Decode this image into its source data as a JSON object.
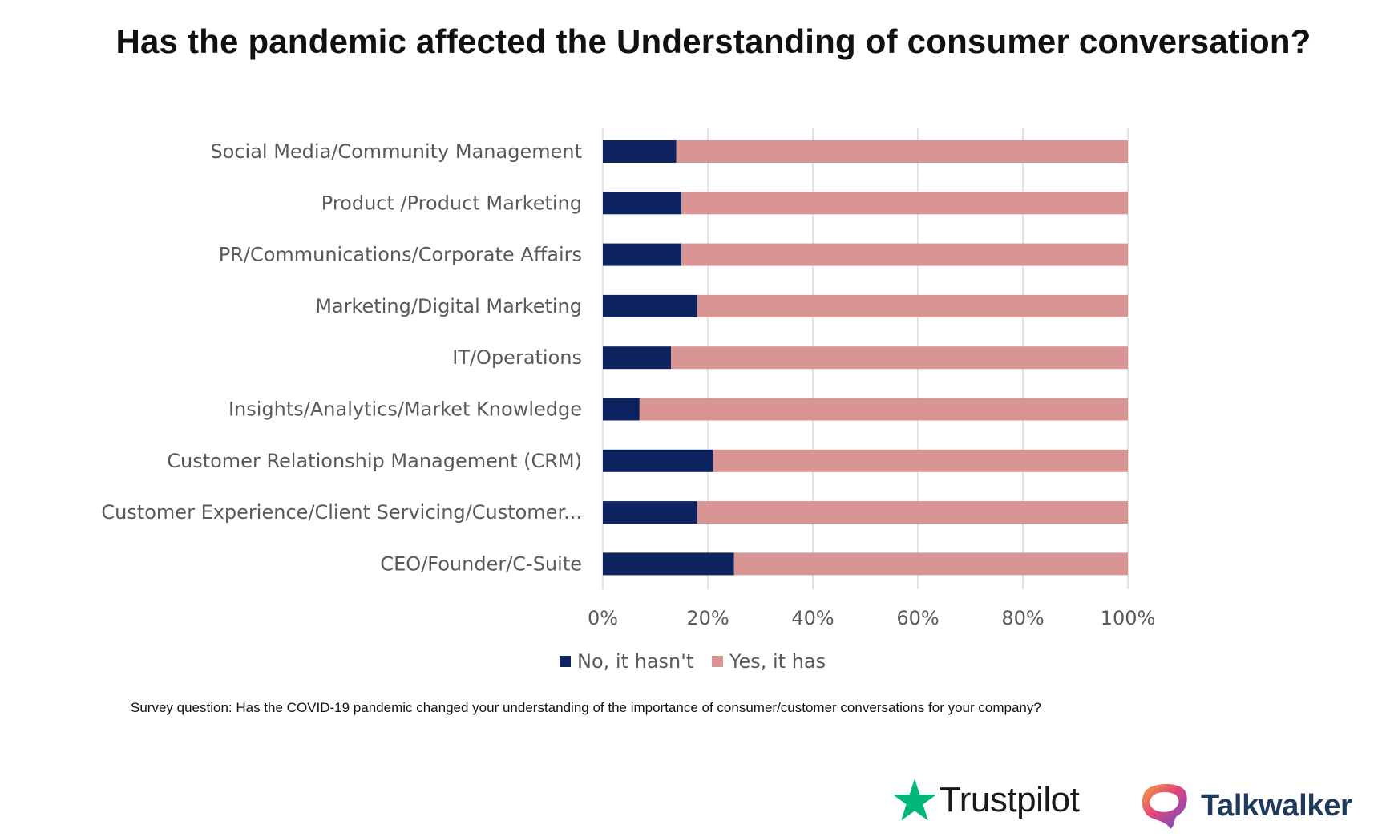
{
  "title": "Has the pandemic affected the Understanding of consumer conversation?",
  "footnote": "Survey question: Has the COVID-19 pandemic changed your understanding of the importance of consumer/customer conversations for your company?",
  "logos": {
    "trustpilot": "Trustpilot",
    "talkwalker": "Talkwalker"
  },
  "colors": {
    "no_series": "#0d2460",
    "yes_series": "#d99594",
    "grid": "#d9d9d9",
    "trustpilot_star": "#00b67a"
  },
  "chart_data": {
    "type": "bar",
    "orientation": "horizontal",
    "stacked": "percent",
    "title": "Has the pandemic affected the Understanding of consumer conversation?",
    "categories": [
      "Social Media/Community Management",
      "Product /Product Marketing",
      "PR/Communications/Corporate Affairs",
      "Marketing/Digital Marketing",
      "IT/Operations",
      "Insights/Analytics/Market Knowledge",
      "Customer Relationship Management (CRM)",
      "Customer Experience/Client Servicing/Customer...",
      "CEO/Founder/C-Suite"
    ],
    "series": [
      {
        "name": "No, it hasn't",
        "values": [
          14,
          15,
          15,
          18,
          13,
          7,
          21,
          18,
          25
        ]
      },
      {
        "name": "Yes, it has",
        "values": [
          86,
          85,
          85,
          82,
          87,
          93,
          79,
          82,
          75
        ]
      }
    ],
    "x_ticks": [
      "0%",
      "20%",
      "40%",
      "60%",
      "80%",
      "100%"
    ],
    "xlim": [
      0,
      100
    ],
    "grid": "vertical",
    "legend": "bottom"
  }
}
